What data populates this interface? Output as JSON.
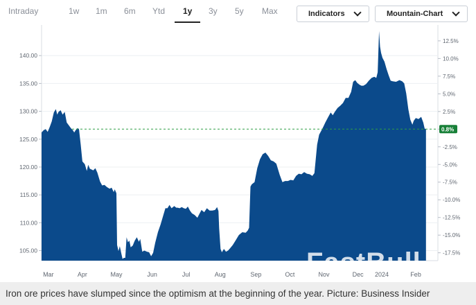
{
  "range_tabs": [
    {
      "label": "Intraday",
      "active": false
    },
    {
      "label": "1w",
      "active": false
    },
    {
      "label": "1m",
      "active": false
    },
    {
      "label": "6m",
      "active": false
    },
    {
      "label": "Ytd",
      "active": false
    },
    {
      "label": "1y",
      "active": true
    },
    {
      "label": "3y",
      "active": false
    },
    {
      "label": "5y",
      "active": false
    },
    {
      "label": "Max",
      "active": false
    }
  ],
  "indicators_label": "Indicators",
  "chart_type_label": "Mountain-Chart",
  "colors": {
    "area": "#0b4a8b",
    "baseline": "#2f9e44",
    "badge": "#188038",
    "grid": "#eceff2"
  },
  "chart_data": {
    "type": "area",
    "ylim": [
      103.2,
      145.5
    ],
    "baseline_value": 126.8,
    "baseline_badge": "0.8%",
    "left_ticks": [
      "140.00",
      "135.00",
      "130.00",
      "125.00",
      "120.00",
      "115.00",
      "110.00",
      "105.00"
    ],
    "left_tick_values": [
      140,
      135,
      130,
      125,
      120,
      115,
      110,
      105
    ],
    "right_ticks": [
      "12.5%",
      "10.0%",
      "7.5%",
      "5.0%",
      "2.5%",
      "0.0%",
      "-2.5%",
      "-5.0%",
      "-7.5%",
      "-10.0%",
      "-12.5%",
      "-15.0%",
      "-17.5%"
    ],
    "right_tick_values": [
      12.5,
      10,
      7.5,
      5,
      2.5,
      0,
      -2.5,
      -5,
      -7.5,
      -10,
      -12.5,
      -15,
      -17.5
    ],
    "x_ticks": [
      "Mar",
      "Apr",
      "May",
      "Jun",
      "Jul",
      "Aug",
      "Sep",
      "Oct",
      "Nov",
      "Dec",
      "2024",
      "Feb"
    ],
    "x_tick_positions": [
      0.2,
      1.2,
      2.2,
      3.25,
      4.25,
      5.25,
      6.3,
      7.3,
      8.3,
      9.3,
      10.0,
      11.0
    ],
    "x_month_range": [
      0,
      11.65
    ],
    "series": [
      {
        "values": [
          [
            0.0,
            126.2
          ],
          [
            0.06,
            126.6
          ],
          [
            0.12,
            126.8
          ],
          [
            0.18,
            126.3
          ],
          [
            0.24,
            127.2
          ],
          [
            0.3,
            128.2
          ],
          [
            0.36,
            129.8
          ],
          [
            0.42,
            130.4
          ],
          [
            0.46,
            129.4
          ],
          [
            0.5,
            129.9
          ],
          [
            0.56,
            130.2
          ],
          [
            0.62,
            129.4
          ],
          [
            0.68,
            129.9
          ],
          [
            0.74,
            128.0
          ],
          [
            0.8,
            127.5
          ],
          [
            0.86,
            127.0
          ],
          [
            0.92,
            126.6
          ],
          [
            0.96,
            126.2
          ],
          [
            1.0,
            126.6
          ],
          [
            1.06,
            127.0
          ],
          [
            1.1,
            126.8
          ],
          [
            1.15,
            124.0
          ],
          [
            1.2,
            121.0
          ],
          [
            1.27,
            120.5
          ],
          [
            1.33,
            119.3
          ],
          [
            1.37,
            120.4
          ],
          [
            1.42,
            119.7
          ],
          [
            1.52,
            119.4
          ],
          [
            1.58,
            119.8
          ],
          [
            1.64,
            119.0
          ],
          [
            1.72,
            117.4
          ],
          [
            1.78,
            116.7
          ],
          [
            1.85,
            116.8
          ],
          [
            1.92,
            116.4
          ],
          [
            2.0,
            116.1
          ],
          [
            2.06,
            116.3
          ],
          [
            2.12,
            115.5
          ],
          [
            2.15,
            116.0
          ],
          [
            2.2,
            115.3
          ],
          [
            2.22,
            106.0
          ],
          [
            2.26,
            104.9
          ],
          [
            2.3,
            105.8
          ],
          [
            2.34,
            104.6
          ],
          [
            2.38,
            103.5
          ],
          [
            2.42,
            103.7
          ],
          [
            2.46,
            103.7
          ],
          [
            2.5,
            107.4
          ],
          [
            2.54,
            106.5
          ],
          [
            2.58,
            106.8
          ],
          [
            2.62,
            105.6
          ],
          [
            2.68,
            105.9
          ],
          [
            2.74,
            106.8
          ],
          [
            2.8,
            107.4
          ],
          [
            2.86,
            106.6
          ],
          [
            2.9,
            107.1
          ],
          [
            2.96,
            104.8
          ],
          [
            3.02,
            105.0
          ],
          [
            3.1,
            104.8
          ],
          [
            3.16,
            104.7
          ],
          [
            3.22,
            104.0
          ],
          [
            3.28,
            104.6
          ],
          [
            3.34,
            106.4
          ],
          [
            3.42,
            108.3
          ],
          [
            3.5,
            109.7
          ],
          [
            3.58,
            111.4
          ],
          [
            3.64,
            112.6
          ],
          [
            3.7,
            112.6
          ],
          [
            3.76,
            113.2
          ],
          [
            3.82,
            112.6
          ],
          [
            3.9,
            113.0
          ],
          [
            3.96,
            112.7
          ],
          [
            4.0,
            112.7
          ],
          [
            4.06,
            112.6
          ],
          [
            4.12,
            112.8
          ],
          [
            4.18,
            112.6
          ],
          [
            4.24,
            112.5
          ],
          [
            4.3,
            112.9
          ],
          [
            4.36,
            112.2
          ],
          [
            4.42,
            111.7
          ],
          [
            4.5,
            111.4
          ],
          [
            4.58,
            110.9
          ],
          [
            4.64,
            111.6
          ],
          [
            4.7,
            112.3
          ],
          [
            4.78,
            111.9
          ],
          [
            4.86,
            112.6
          ],
          [
            4.94,
            112.2
          ],
          [
            5.02,
            112.2
          ],
          [
            5.1,
            112.3
          ],
          [
            5.16,
            112.8
          ],
          [
            5.2,
            112.1
          ],
          [
            5.22,
            109.0
          ],
          [
            5.26,
            105.3
          ],
          [
            5.3,
            104.7
          ],
          [
            5.36,
            105.3
          ],
          [
            5.42,
            104.8
          ],
          [
            5.48,
            105.0
          ],
          [
            5.54,
            105.4
          ],
          [
            5.62,
            106.0
          ],
          [
            5.7,
            106.8
          ],
          [
            5.8,
            107.8
          ],
          [
            5.9,
            108.3
          ],
          [
            6.0,
            108.2
          ],
          [
            6.06,
            108.6
          ],
          [
            6.1,
            109.1
          ],
          [
            6.14,
            116.5
          ],
          [
            6.18,
            116.9
          ],
          [
            6.26,
            117.3
          ],
          [
            6.34,
            119.8
          ],
          [
            6.42,
            121.4
          ],
          [
            6.5,
            122.3
          ],
          [
            6.58,
            122.6
          ],
          [
            6.66,
            122.0
          ],
          [
            6.74,
            121.2
          ],
          [
            6.82,
            121.0
          ],
          [
            6.9,
            120.6
          ],
          [
            7.0,
            118.6
          ],
          [
            7.08,
            117.3
          ],
          [
            7.16,
            117.5
          ],
          [
            7.24,
            117.5
          ],
          [
            7.32,
            117.7
          ],
          [
            7.4,
            117.6
          ],
          [
            7.48,
            118.4
          ],
          [
            7.56,
            118.8
          ],
          [
            7.64,
            118.7
          ],
          [
            7.72,
            119.1
          ],
          [
            7.8,
            118.8
          ],
          [
            7.88,
            118.7
          ],
          [
            7.96,
            118.4
          ],
          [
            8.02,
            118.9
          ],
          [
            8.1,
            124.0
          ],
          [
            8.16,
            125.8
          ],
          [
            8.22,
            126.5
          ],
          [
            8.28,
            127.2
          ],
          [
            8.34,
            128.0
          ],
          [
            8.42,
            128.9
          ],
          [
            8.5,
            129.8
          ],
          [
            8.56,
            129.3
          ],
          [
            8.62,
            129.9
          ],
          [
            8.7,
            130.6
          ],
          [
            8.78,
            131.0
          ],
          [
            8.86,
            131.5
          ],
          [
            8.94,
            132.4
          ],
          [
            9.02,
            132.4
          ],
          [
            9.1,
            133.5
          ],
          [
            9.16,
            135.3
          ],
          [
            9.22,
            135.6
          ],
          [
            9.28,
            135.1
          ],
          [
            9.34,
            134.8
          ],
          [
            9.4,
            134.6
          ],
          [
            9.46,
            134.6
          ],
          [
            9.54,
            134.9
          ],
          [
            9.62,
            135.5
          ],
          [
            9.7,
            136.0
          ],
          [
            9.78,
            136.2
          ],
          [
            9.84,
            136.0
          ],
          [
            9.88,
            137.0
          ],
          [
            9.92,
            144.4
          ],
          [
            9.95,
            141.6
          ],
          [
            9.98,
            140.5
          ],
          [
            10.02,
            139.6
          ],
          [
            10.08,
            138.9
          ],
          [
            10.14,
            137.6
          ],
          [
            10.2,
            136.5
          ],
          [
            10.26,
            135.5
          ],
          [
            10.32,
            135.4
          ],
          [
            10.42,
            135.3
          ],
          [
            10.52,
            135.6
          ],
          [
            10.6,
            135.4
          ],
          [
            10.66,
            135.0
          ],
          [
            10.72,
            133.2
          ],
          [
            10.78,
            130.4
          ],
          [
            10.84,
            128.5
          ],
          [
            10.9,
            127.6
          ],
          [
            10.94,
            128.3
          ],
          [
            11.0,
            128.8
          ],
          [
            11.08,
            128.6
          ],
          [
            11.16,
            129.0
          ],
          [
            11.22,
            128.0
          ],
          [
            11.26,
            126.9
          ],
          [
            11.3,
            126.8
          ]
        ]
      }
    ]
  },
  "watermark": "FastBull",
  "caption": "Iron ore prices have slumped since the optimism at the beginning of the year. Picture: Business Insider"
}
